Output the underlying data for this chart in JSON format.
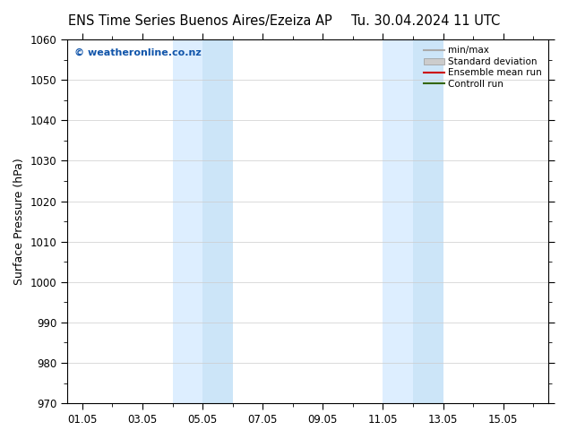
{
  "title_left": "ENS Time Series Buenos Aires/Ezeiza AP",
  "title_right": "Tu. 30.04.2024 11 UTC",
  "ylabel": "Surface Pressure (hPa)",
  "ylim": [
    970,
    1060
  ],
  "yticks": [
    970,
    980,
    990,
    1000,
    1010,
    1020,
    1030,
    1040,
    1050,
    1060
  ],
  "xtick_labels": [
    "01.05",
    "03.05",
    "05.05",
    "07.05",
    "09.05",
    "11.05",
    "13.05",
    "15.05"
  ],
  "xtick_positions": [
    0,
    2,
    4,
    6,
    8,
    10,
    12,
    14
  ],
  "xlim": [
    -0.5,
    15.5
  ],
  "shaded_regions": [
    {
      "xstart": 3.0,
      "xend": 4.0,
      "color": "#ddeeff"
    },
    {
      "xstart": 4.0,
      "xend": 5.0,
      "color": "#cce5f8"
    },
    {
      "xstart": 10.0,
      "xend": 11.0,
      "color": "#ddeeff"
    },
    {
      "xstart": 11.0,
      "xend": 12.0,
      "color": "#cce5f8"
    }
  ],
  "watermark_text": "© weatheronline.co.nz",
  "watermark_color": "#1155aa",
  "background_color": "#ffffff",
  "plot_bg_color": "#ffffff",
  "legend_items": [
    {
      "label": "min/max",
      "color": "#aaaaaa",
      "lw": 1.5,
      "style": "-",
      "type": "line"
    },
    {
      "label": "Standard deviation",
      "color": "#cccccc",
      "lw": 6,
      "style": "-",
      "type": "patch"
    },
    {
      "label": "Ensemble mean run",
      "color": "#cc0000",
      "lw": 1.5,
      "style": "-",
      "type": "line"
    },
    {
      "label": "Controll run",
      "color": "#336600",
      "lw": 1.5,
      "style": "-",
      "type": "line"
    }
  ],
  "tick_fontsize": 8.5,
  "label_fontsize": 9,
  "title_fontsize": 10.5
}
